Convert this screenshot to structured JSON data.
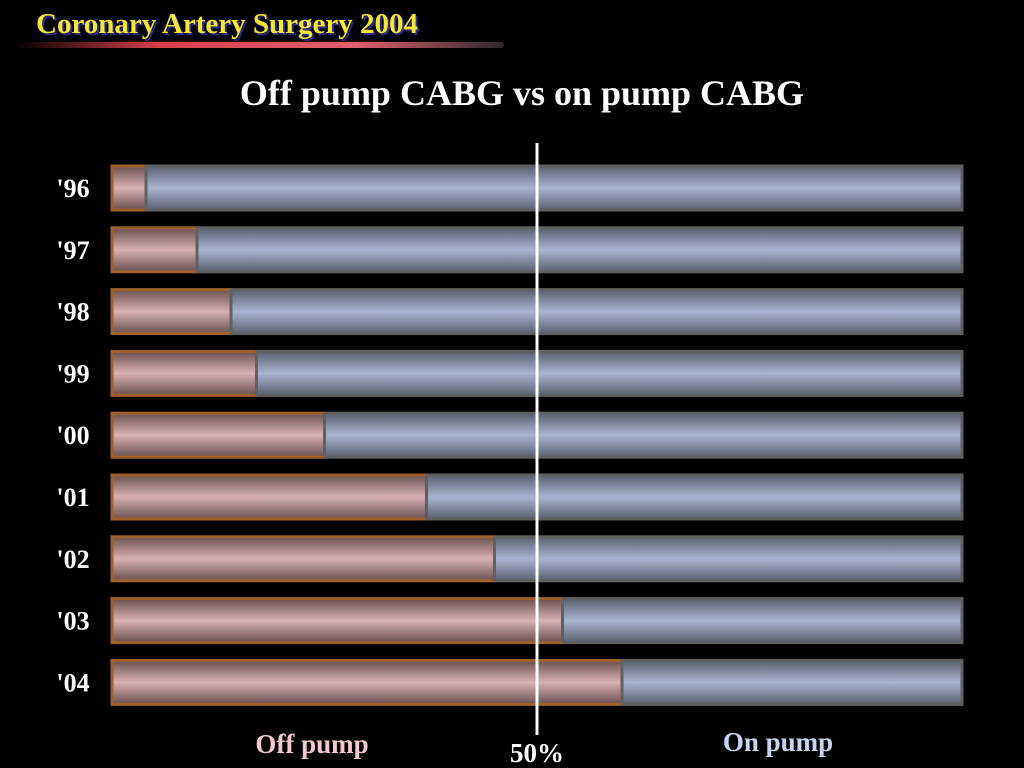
{
  "header": "Coronary Artery Surgery 2004",
  "chart_data": {
    "type": "bar",
    "stacked": true,
    "orientation": "horizontal",
    "title": "Off pump CABG vs on pump CABG",
    "categories": [
      "'96",
      "'97",
      "'98",
      "'99",
      "'00",
      "'01",
      "'02",
      "'03",
      "'04"
    ],
    "series": [
      {
        "name": "Off pump",
        "color": "#c89aa0",
        "values": [
          4,
          10,
          14,
          17,
          25,
          37,
          45,
          53,
          60
        ]
      },
      {
        "name": "On pump",
        "color": "#9aa8c8",
        "values": [
          96,
          90,
          86,
          83,
          75,
          63,
          55,
          47,
          40
        ]
      }
    ],
    "xlim": [
      0,
      100
    ],
    "reference_line": {
      "value": 50,
      "label": "50%"
    },
    "xlabel": "",
    "ylabel": ""
  }
}
